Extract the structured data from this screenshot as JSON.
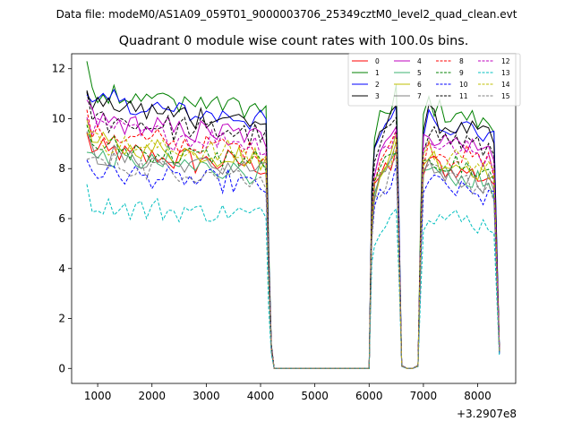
{
  "chart_data": {
    "type": "line",
    "suptitle": "Data file: modeM0/AS1A09_059T01_9000003706_25349cztM0_level2_quad_clean.evt",
    "title": "Quadrant 0 module wise count rates with 100.0s bins.",
    "xlabel": "",
    "ylabel": "",
    "offset_label": "+3.2907e8",
    "xlim": [
      520,
      8700
    ],
    "ylim": [
      -0.6,
      12.6
    ],
    "xticks": [
      1000,
      2000,
      3000,
      4000,
      5000,
      6000,
      7000,
      8000
    ],
    "xtick_labels": [
      "1000",
      "2000",
      "3000",
      "4000",
      "5000",
      "6000",
      "7000",
      "8000"
    ],
    "yticks": [
      0,
      2,
      4,
      6,
      8,
      10,
      12
    ],
    "ytick_labels": [
      "0",
      "2",
      "4",
      "6",
      "8",
      "10",
      "12"
    ],
    "x": [
      800,
      900,
      1000,
      1100,
      1200,
      1300,
      1400,
      1500,
      1600,
      1700,
      1800,
      1900,
      2000,
      2100,
      2200,
      2300,
      2400,
      2500,
      2600,
      2700,
      2800,
      2900,
      3000,
      3100,
      3200,
      3300,
      3400,
      3500,
      3600,
      3700,
      3800,
      3900,
      4000,
      4100,
      4150,
      4200,
      4250,
      4300,
      4400,
      4500,
      4600,
      4700,
      4800,
      4900,
      5000,
      5100,
      5200,
      5300,
      5400,
      5500,
      5600,
      5700,
      5800,
      5900,
      6000,
      6050,
      6100,
      6200,
      6300,
      6400,
      6500,
      6550,
      6600,
      6700,
      6800,
      6900,
      6950,
      7000,
      7100,
      7200,
      7300,
      7400,
      7500,
      7600,
      7700,
      7800,
      7900,
      8000,
      8100,
      8200,
      8300,
      8400
    ],
    "shape": [
      1.0,
      0.95,
      0.93,
      0.94,
      0.92,
      0.94,
      0.93,
      0.92,
      0.91,
      0.93,
      0.92,
      0.9,
      0.91,
      0.92,
      0.9,
      0.91,
      0.89,
      0.9,
      0.91,
      0.9,
      0.88,
      0.9,
      0.89,
      0.9,
      0.88,
      0.89,
      0.9,
      0.88,
      0.89,
      0.88,
      0.87,
      0.88,
      0.87,
      0.86,
      0.4,
      0.08,
      0,
      0,
      0,
      0,
      0,
      0,
      0,
      0,
      0,
      0,
      0,
      0,
      0,
      0,
      0,
      0,
      0,
      0,
      0,
      0.6,
      0.75,
      0.83,
      0.86,
      0.88,
      0.95,
      0.5,
      0.01,
      0,
      0,
      0.01,
      0.5,
      0.85,
      0.9,
      0.88,
      0.87,
      0.86,
      0.85,
      0.86,
      0.84,
      0.85,
      0.84,
      0.83,
      0.82,
      0.83,
      0.8,
      0.07
    ],
    "legend_location": "upper right",
    "series": [
      {
        "name": "0",
        "level": 9.3,
        "color": "#ff0000",
        "dash": "solid"
      },
      {
        "name": "1",
        "level": 11.9,
        "color": "#008000",
        "dash": "solid"
      },
      {
        "name": "2",
        "level": 11.4,
        "color": "#0000ff",
        "dash": "solid"
      },
      {
        "name": "3",
        "level": 11.3,
        "color": "#000000",
        "dash": "solid"
      },
      {
        "name": "4",
        "level": 10.6,
        "color": "#bf00bf",
        "dash": "solid"
      },
      {
        "name": "5",
        "level": 9.0,
        "color": "#3cb371",
        "dash": "solid"
      },
      {
        "name": "6",
        "level": 9.6,
        "color": "#bfbf00",
        "dash": "solid"
      },
      {
        "name": "7",
        "level": 9.1,
        "color": "#808080",
        "dash": "solid"
      },
      {
        "name": "8",
        "level": 10.0,
        "color": "#ff0000",
        "dash": "dashed"
      },
      {
        "name": "9",
        "level": 9.5,
        "color": "#008000",
        "dash": "dashed"
      },
      {
        "name": "10",
        "level": 8.4,
        "color": "#0000ff",
        "dash": "dashed"
      },
      {
        "name": "11",
        "level": 10.7,
        "color": "#000000",
        "dash": "dashed"
      },
      {
        "name": "12",
        "level": 10.3,
        "color": "#bf00bf",
        "dash": "dashed"
      },
      {
        "name": "13",
        "level": 7.0,
        "color": "#00bfbf",
        "dash": "dashed"
      },
      {
        "name": "14",
        "level": 9.7,
        "color": "#bfbf00",
        "dash": "dashed"
      },
      {
        "name": "15",
        "level": 8.8,
        "color": "#808080",
        "dash": "dashed"
      }
    ]
  }
}
